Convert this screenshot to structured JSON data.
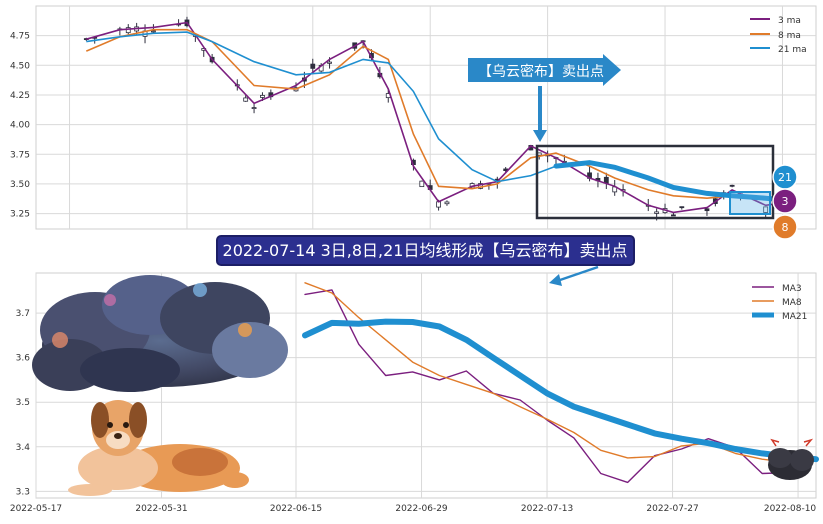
{
  "banner": {
    "text": "2022-07-14 3日,8日,21日均线形成【乌云密布】卖出点",
    "bg": "#2b2f8f",
    "fg": "#ffffff"
  },
  "arrow_label": {
    "text": "【乌云密布】卖出点",
    "bg": "#2a88c8"
  },
  "badges": {
    "b21": "21",
    "b3": "3",
    "b8": "8"
  },
  "colors": {
    "ma3": "#7b1f7f",
    "ma8": "#e07b2a",
    "ma21": "#1f8fd0",
    "candle_down": "#2e2e3e",
    "candle_up": "#ffffff",
    "grid": "#d9d9d9",
    "box": "#2b2f3a"
  },
  "chart_data": [
    {
      "type": "line",
      "panel": "top",
      "series": [
        {
          "name": "3 ma",
          "x": [
            "2022-05-19",
            "2022-05-23",
            "2022-05-27",
            "2022-05-31",
            "2022-06-03",
            "2022-06-08",
            "2022-06-13",
            "2022-06-17",
            "2022-06-21",
            "2022-06-24",
            "2022-06-27",
            "2022-06-30",
            "2022-07-04",
            "2022-07-07",
            "2022-07-11",
            "2022-07-14",
            "2022-07-18",
            "2022-07-21",
            "2022-07-25",
            "2022-07-28",
            "2022-08-01",
            "2022-08-04",
            "2022-08-08",
            "2022-08-11"
          ],
          "values": [
            4.72,
            4.8,
            4.82,
            4.86,
            4.55,
            4.18,
            4.33,
            4.55,
            4.7,
            4.3,
            3.65,
            3.35,
            3.48,
            3.52,
            3.82,
            3.72,
            3.55,
            3.48,
            3.32,
            3.26,
            3.3,
            3.45,
            3.32,
            3.35
          ]
        },
        {
          "name": "8 ma",
          "x": [
            "2022-05-19",
            "2022-05-23",
            "2022-05-27",
            "2022-05-31",
            "2022-06-03",
            "2022-06-08",
            "2022-06-13",
            "2022-06-17",
            "2022-06-21",
            "2022-06-24",
            "2022-06-27",
            "2022-06-30",
            "2022-07-04",
            "2022-07-07",
            "2022-07-11",
            "2022-07-14",
            "2022-07-18",
            "2022-07-21",
            "2022-07-25",
            "2022-07-28",
            "2022-08-01",
            "2022-08-04",
            "2022-08-08",
            "2022-08-11"
          ],
          "values": [
            4.62,
            4.74,
            4.8,
            4.8,
            4.7,
            4.33,
            4.3,
            4.42,
            4.66,
            4.55,
            3.92,
            3.48,
            3.46,
            3.5,
            3.72,
            3.76,
            3.65,
            3.55,
            3.45,
            3.4,
            3.38,
            3.4,
            3.37,
            3.36
          ]
        },
        {
          "name": "21 ma",
          "x": [
            "2022-05-19",
            "2022-05-23",
            "2022-05-27",
            "2022-05-31",
            "2022-06-03",
            "2022-06-08",
            "2022-06-13",
            "2022-06-17",
            "2022-06-21",
            "2022-06-24",
            "2022-06-27",
            "2022-06-30",
            "2022-07-04",
            "2022-07-07",
            "2022-07-11",
            "2022-07-14",
            "2022-07-18",
            "2022-07-21",
            "2022-07-25",
            "2022-07-28",
            "2022-08-01",
            "2022-08-04",
            "2022-08-08",
            "2022-08-11"
          ],
          "values": [
            4.7,
            4.74,
            4.77,
            4.78,
            4.7,
            4.53,
            4.42,
            4.44,
            4.55,
            4.52,
            4.28,
            3.88,
            3.62,
            3.52,
            3.57,
            3.65,
            3.68,
            3.64,
            3.55,
            3.47,
            3.42,
            3.4,
            3.38,
            3.36
          ]
        }
      ],
      "ylim": [
        3.12,
        5.0
      ],
      "yticks": [
        3.25,
        3.5,
        3.75,
        4.0,
        4.25,
        4.5,
        4.75
      ],
      "ytick_labels": [
        "3.25",
        "3.50",
        "3.75",
        "4.00",
        "4.25",
        "4.50",
        "4.75"
      ],
      "legend": "top-right",
      "grid": true
    },
    {
      "type": "line",
      "panel": "bottom",
      "series": [
        {
          "name": "MA3",
          "x": [
            "2022-06-16",
            "2022-06-19",
            "2022-06-22",
            "2022-06-25",
            "2022-06-28",
            "2022-07-01",
            "2022-07-04",
            "2022-07-07",
            "2022-07-10",
            "2022-07-13",
            "2022-07-16",
            "2022-07-19",
            "2022-07-22",
            "2022-07-25",
            "2022-07-28",
            "2022-07-31",
            "2022-08-03",
            "2022-08-06",
            "2022-08-09",
            "2022-08-12"
          ],
          "values": [
            3.742,
            3.752,
            3.63,
            3.56,
            3.568,
            3.55,
            3.57,
            3.52,
            3.505,
            3.46,
            3.42,
            3.34,
            3.32,
            3.38,
            3.395,
            3.418,
            3.398,
            3.34,
            3.342,
            3.37
          ]
        },
        {
          "name": "MA8",
          "x": [
            "2022-06-16",
            "2022-06-19",
            "2022-06-22",
            "2022-06-25",
            "2022-06-28",
            "2022-07-01",
            "2022-07-04",
            "2022-07-07",
            "2022-07-10",
            "2022-07-13",
            "2022-07-16",
            "2022-07-19",
            "2022-07-22",
            "2022-07-25",
            "2022-07-28",
            "2022-07-31",
            "2022-08-03",
            "2022-08-06",
            "2022-08-09",
            "2022-08-12"
          ],
          "values": [
            3.768,
            3.745,
            3.69,
            3.64,
            3.59,
            3.56,
            3.54,
            3.52,
            3.49,
            3.462,
            3.432,
            3.392,
            3.375,
            3.378,
            3.402,
            3.408,
            3.385,
            3.372,
            3.365,
            3.37
          ]
        },
        {
          "name": "MA21",
          "x": [
            "2022-06-16",
            "2022-06-19",
            "2022-06-22",
            "2022-06-25",
            "2022-06-28",
            "2022-07-01",
            "2022-07-04",
            "2022-07-07",
            "2022-07-10",
            "2022-07-13",
            "2022-07-16",
            "2022-07-19",
            "2022-07-22",
            "2022-07-25",
            "2022-07-28",
            "2022-07-31",
            "2022-08-03",
            "2022-08-06",
            "2022-08-09",
            "2022-08-12"
          ],
          "values": [
            3.65,
            3.678,
            3.676,
            3.681,
            3.68,
            3.67,
            3.64,
            3.6,
            3.56,
            3.52,
            3.49,
            3.47,
            3.45,
            3.43,
            3.418,
            3.408,
            3.395,
            3.385,
            3.378,
            3.372
          ]
        }
      ],
      "ylim": [
        3.285,
        3.79
      ],
      "yticks": [
        3.3,
        3.4,
        3.5,
        3.6,
        3.7
      ],
      "ytick_labels": [
        "3.3",
        "3.4",
        "3.5",
        "3.6",
        "3.7"
      ],
      "xticks": [
        "2022-05-17",
        "2022-05-31",
        "2022-06-15",
        "2022-06-29",
        "2022-07-13",
        "2022-07-27",
        "2022-08-10"
      ],
      "legend": "top-right",
      "grid": true
    }
  ]
}
